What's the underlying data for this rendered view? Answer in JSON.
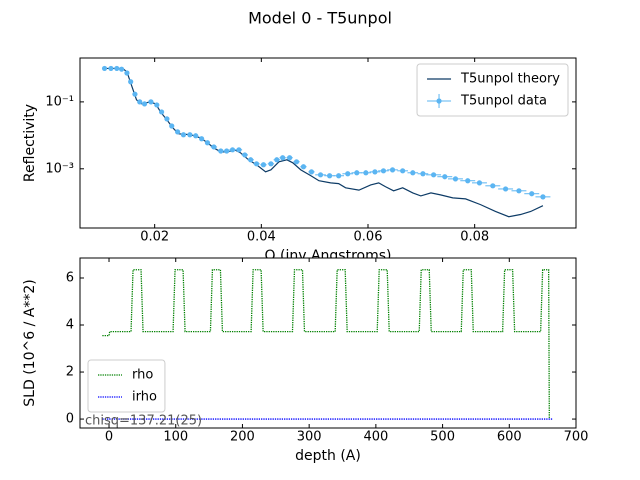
{
  "title": "Model 0 - T5unpol",
  "chart_data": [
    {
      "type": "line",
      "xlabel": "Q (inv Angstroms)",
      "ylabel": "Reflectivity",
      "xlim": [
        0.006,
        0.099
      ],
      "ylim": [
        1.7e-05,
        2.05
      ],
      "yscale": "log",
      "xticks": [
        0.02,
        0.04,
        0.06,
        0.08
      ],
      "yticks": [
        {
          "value": 0.1,
          "label": "10⁻¹"
        },
        {
          "value": 0.001,
          "label": "10⁻³"
        }
      ],
      "legend": "upper right",
      "series": [
        {
          "name": "T5unpol theory",
          "color": "#0d3b66",
          "style": "line",
          "x": [
            0.0106,
            0.014,
            0.0148,
            0.0157,
            0.0166,
            0.0176,
            0.0191,
            0.0202,
            0.0211,
            0.0223,
            0.0234,
            0.0245,
            0.0268,
            0.0286,
            0.0299,
            0.0311,
            0.0324,
            0.0337,
            0.035,
            0.0361,
            0.0376,
            0.0391,
            0.0408,
            0.0418,
            0.0433,
            0.0448,
            0.0459,
            0.0474,
            0.0493,
            0.0508,
            0.053,
            0.0545,
            0.0558,
            0.0583,
            0.0605,
            0.062,
            0.0633,
            0.0648,
            0.0665,
            0.0684,
            0.0699,
            0.0718,
            0.0736,
            0.0759,
            0.0783,
            0.0811,
            0.0839,
            0.0864,
            0.0886,
            0.0905,
            0.0928
          ],
          "values": [
            1.0,
            1.0,
            0.79,
            0.3,
            0.115,
            0.087,
            0.1,
            0.087,
            0.05,
            0.029,
            0.0168,
            0.0111,
            0.0104,
            0.0084,
            0.006,
            0.0042,
            0.0032,
            0.0032,
            0.0037,
            0.003,
            0.00186,
            0.00132,
            0.00081,
            0.00093,
            0.00162,
            0.00186,
            0.00151,
            0.00093,
            0.00062,
            0.00044,
            0.00038,
            0.00036,
            0.00027,
            0.00023,
            0.00033,
            0.00038,
            0.00029,
            0.00022,
            0.00027,
            0.00019,
            0.000155,
            0.00019,
            0.000166,
            0.000135,
            0.000126,
            8.5e-05,
            5.3e-05,
            3.7e-05,
            4.3e-05,
            5.3e-05,
            7.9e-05
          ]
        },
        {
          "name": "T5unpol data",
          "color": "#5bb5f2",
          "style": "errorbar",
          "x": [
            0.0106,
            0.0118,
            0.0129,
            0.0138,
            0.0148,
            0.0155,
            0.0163,
            0.0172,
            0.0181,
            0.0193,
            0.0204,
            0.0213,
            0.0223,
            0.0232,
            0.0243,
            0.0254,
            0.0266,
            0.0277,
            0.0288,
            0.0299,
            0.0311,
            0.0324,
            0.0335,
            0.0346,
            0.0358,
            0.0369,
            0.038,
            0.0391,
            0.0404,
            0.0418,
            0.0429,
            0.044,
            0.0453,
            0.0466,
            0.0479,
            0.0494,
            0.0511,
            0.0528,
            0.0545,
            0.0562,
            0.0579,
            0.0596,
            0.0613,
            0.0629,
            0.0646,
            0.0665,
            0.0684,
            0.0703,
            0.0723,
            0.0744,
            0.0764,
            0.0787,
            0.0809,
            0.0834,
            0.0858,
            0.0883,
            0.0907,
            0.0928
          ],
          "values": [
            1.0,
            1.0,
            1.0,
            0.95,
            0.73,
            0.4,
            0.17,
            0.1,
            0.087,
            0.1,
            0.081,
            0.05,
            0.031,
            0.019,
            0.0127,
            0.0104,
            0.0104,
            0.0097,
            0.0079,
            0.006,
            0.0045,
            0.0034,
            0.0034,
            0.0037,
            0.0037,
            0.0026,
            0.00186,
            0.00141,
            0.00132,
            0.00141,
            0.00186,
            0.00214,
            0.00214,
            0.00162,
            0.00115,
            0.00081,
            0.00066,
            0.00062,
            0.00062,
            0.00071,
            0.00076,
            0.00076,
            0.00081,
            0.00087,
            0.00093,
            0.00087,
            0.00076,
            0.00071,
            0.00066,
            0.00058,
            0.0005,
            0.00044,
            0.00038,
            0.00031,
            0.00025,
            0.00022,
            0.00018,
            0.000145
          ],
          "xerr": [
            0.0003,
            0.0003,
            0.0003,
            0.0003,
            0.0003,
            0.0003,
            0.0003,
            0.0003,
            0.0003,
            0.0003,
            0.0003,
            0.0003,
            0.0003,
            0.0003,
            0.0003,
            0.0003,
            0.0003,
            0.0003,
            0.0003,
            0.0003,
            0.0006,
            0.0006,
            0.0006,
            0.0006,
            0.0006,
            0.0006,
            0.0006,
            0.0006,
            0.0006,
            0.0006,
            0.0006,
            0.0006,
            0.0006,
            0.0006,
            0.0006,
            0.0006,
            0.001,
            0.001,
            0.001,
            0.001,
            0.001,
            0.001,
            0.001,
            0.001,
            0.001,
            0.001,
            0.001,
            0.001,
            0.0014,
            0.0014,
            0.0014,
            0.0014,
            0.0014,
            0.0014,
            0.0014,
            0.0014,
            0.0014,
            0.0014
          ]
        }
      ]
    },
    {
      "type": "line",
      "xlabel": "depth (A)",
      "ylabel": "SLD (10^6 / A**2)",
      "xlim": [
        -43.5,
        700
      ],
      "ylim": [
        -0.38,
        6.85
      ],
      "yscale": "linear",
      "xticks": [
        0,
        100,
        200,
        300,
        400,
        500,
        600,
        700
      ],
      "yticks": [
        0,
        2,
        4,
        6
      ],
      "legend": "lower left",
      "annotation": "chisq=137.21(25)",
      "series": [
        {
          "name": "rho",
          "color": "#008000",
          "style": "dotted",
          "x": [
            -10,
            0,
            1,
            33,
            36,
            48,
            51,
            96,
            99,
            111,
            114,
            152,
            155,
            167,
            170,
            213,
            216,
            228,
            231,
            275,
            278,
            290,
            293,
            339,
            342,
            354,
            357,
            402,
            405,
            417,
            420,
            465,
            468,
            480,
            483,
            528,
            531,
            543,
            546,
            590,
            593,
            605,
            608,
            647,
            650,
            659,
            660
          ],
          "values": [
            3.55,
            3.55,
            3.72,
            3.72,
            6.35,
            6.35,
            3.72,
            3.72,
            6.35,
            6.35,
            3.72,
            3.72,
            6.35,
            6.35,
            3.72,
            3.72,
            6.35,
            6.35,
            3.72,
            3.72,
            6.35,
            6.35,
            3.72,
            3.72,
            6.35,
            6.35,
            3.72,
            3.72,
            6.35,
            6.35,
            3.72,
            3.72,
            6.35,
            6.35,
            3.72,
            3.72,
            6.35,
            6.35,
            3.72,
            3.72,
            6.35,
            6.35,
            3.72,
            3.72,
            6.35,
            6.35,
            0
          ]
        },
        {
          "name": "irho",
          "color": "#0000ff",
          "style": "dotted",
          "x": [
            -10,
            665
          ],
          "values": [
            0,
            0
          ]
        }
      ]
    }
  ]
}
